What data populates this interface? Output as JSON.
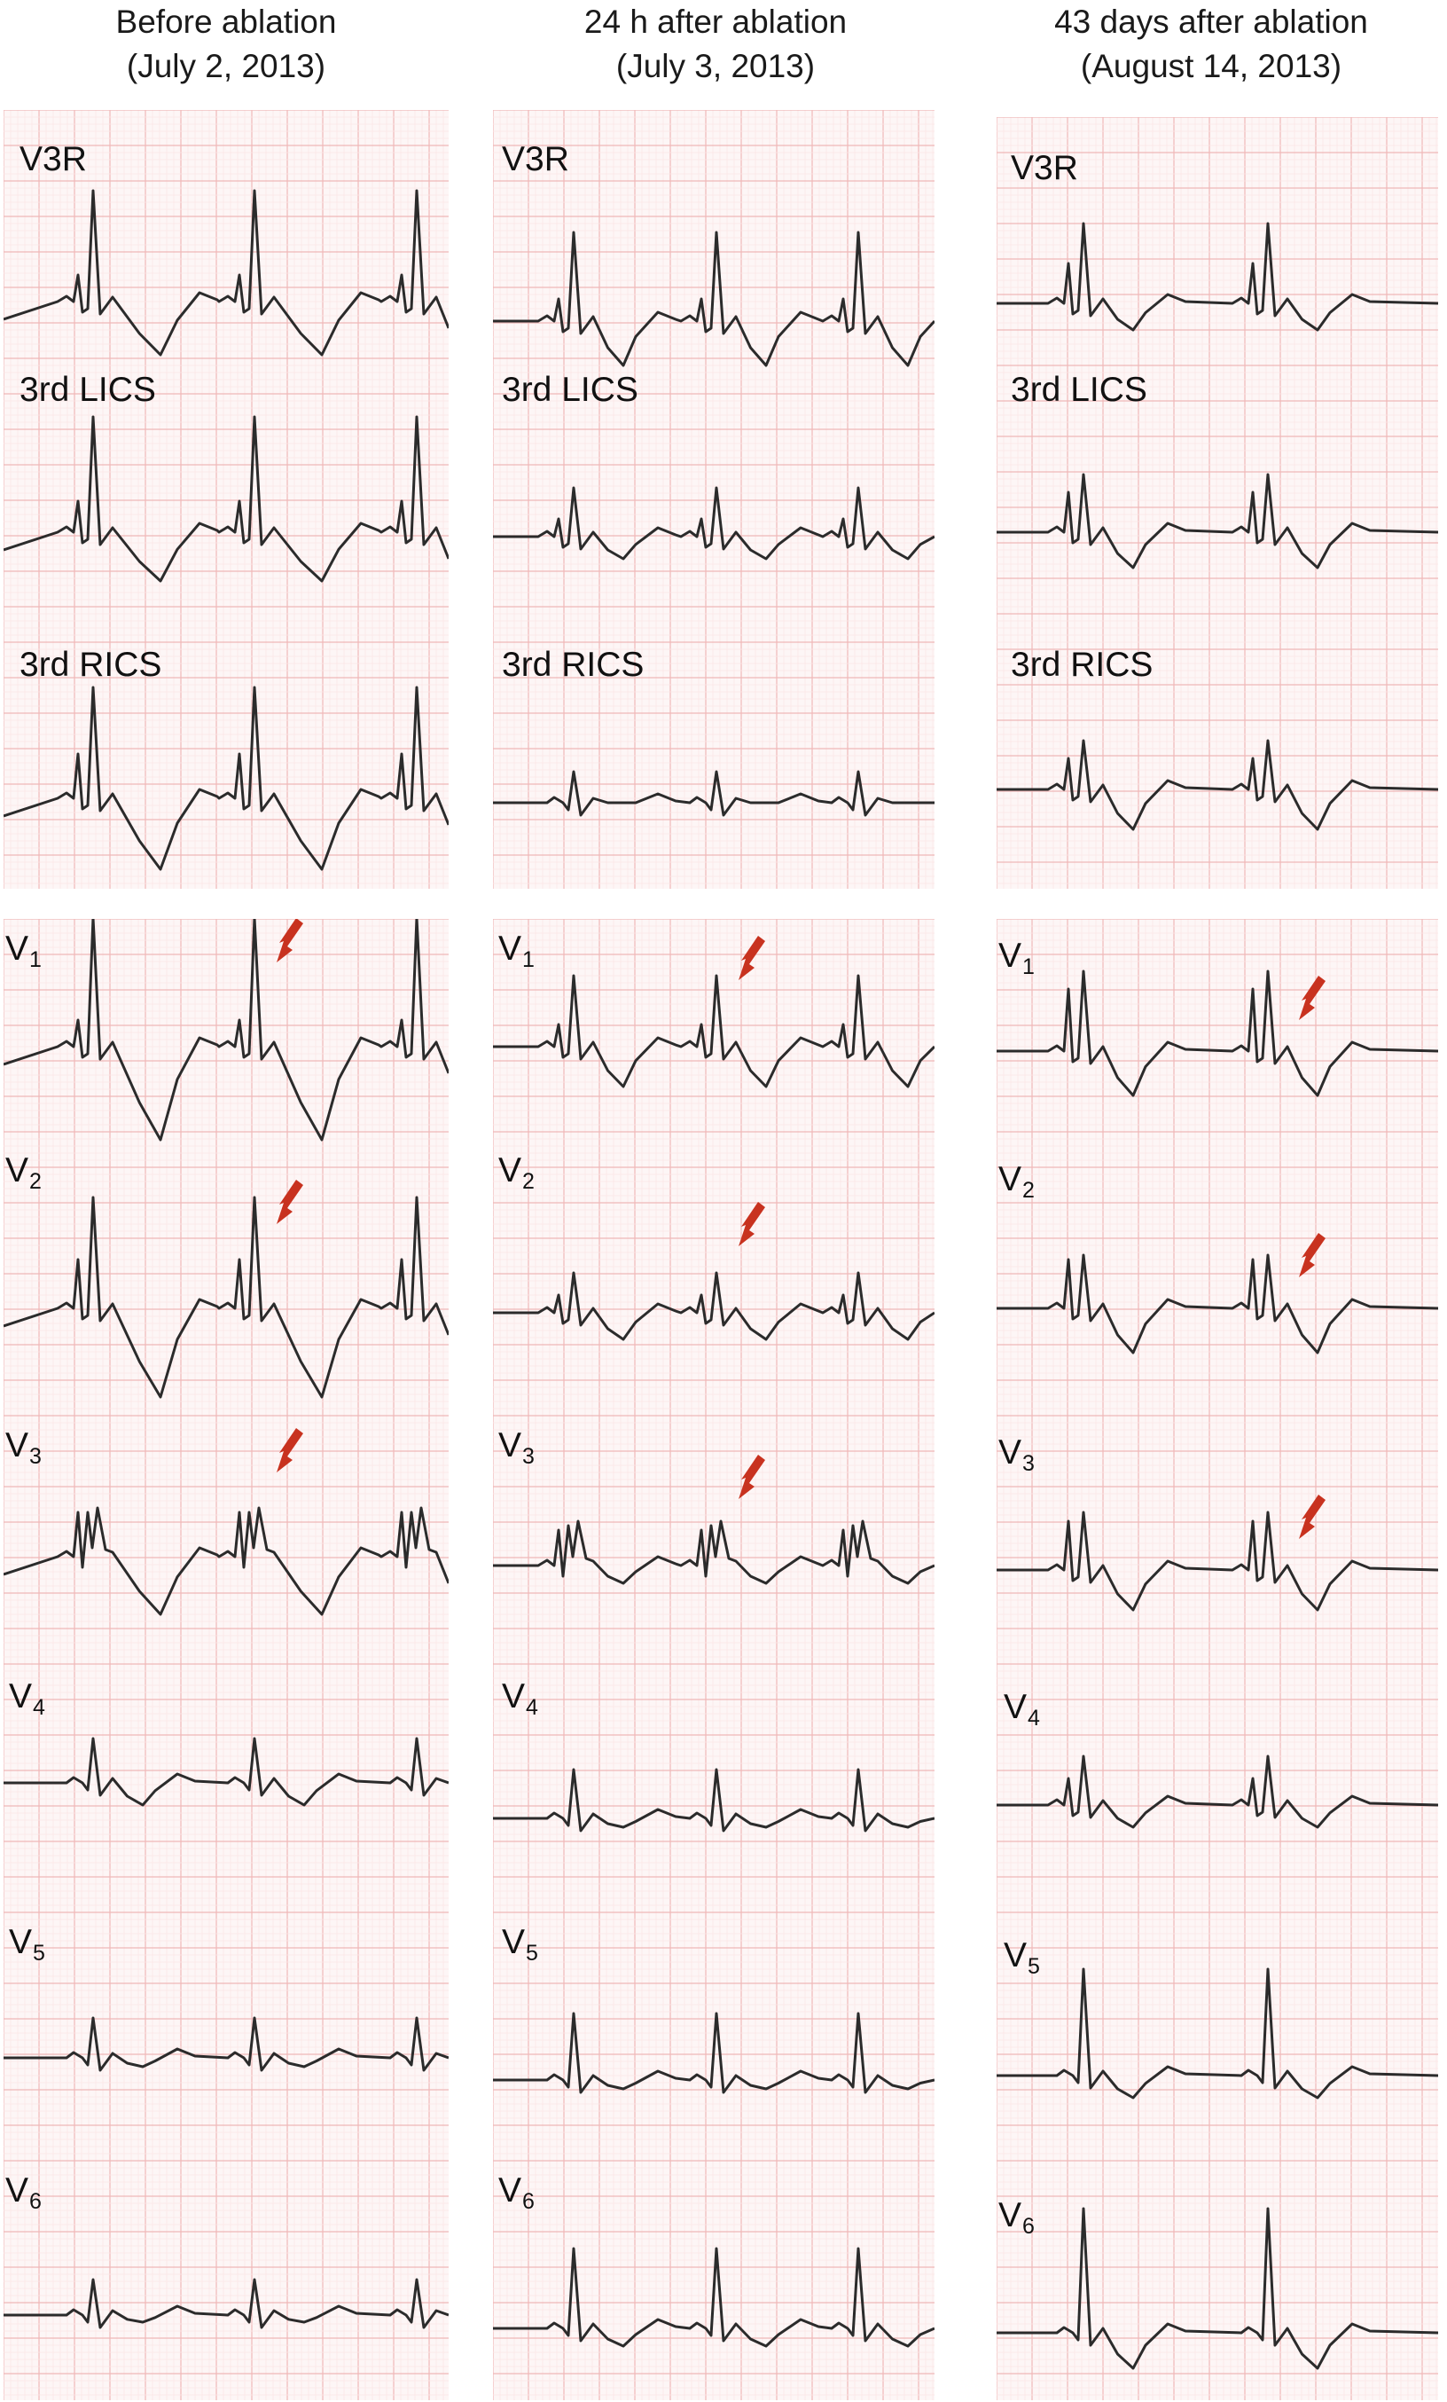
{
  "colors": {
    "grid_major": "#f0b8b8",
    "grid_minor": "#fbe6e6",
    "grid_bg": "#fdf6f6",
    "trace": "#2b2b2b",
    "arrow": "#c8321f"
  },
  "columns": [
    {
      "title_line1": "Before ablation",
      "title_line2": "(July 2, 2013)",
      "leads": [
        {
          "label": "V3R",
          "sub": ""
        },
        {
          "label": "3rd LICS",
          "sub": ""
        },
        {
          "label": "3rd RICS",
          "sub": ""
        },
        {
          "label": "V",
          "sub": "1"
        },
        {
          "label": "V",
          "sub": "2"
        },
        {
          "label": "V",
          "sub": "3"
        },
        {
          "label": "V",
          "sub": "4"
        },
        {
          "label": "V",
          "sub": "5"
        },
        {
          "label": "V",
          "sub": "6"
        }
      ]
    },
    {
      "title_line1": "24 h after ablation",
      "title_line2": "(July 3, 2013)",
      "leads": [
        {
          "label": "V3R",
          "sub": ""
        },
        {
          "label": "3rd LICS",
          "sub": ""
        },
        {
          "label": "3rd RICS",
          "sub": ""
        },
        {
          "label": "V",
          "sub": "1"
        },
        {
          "label": "V",
          "sub": "2"
        },
        {
          "label": "V",
          "sub": "3"
        },
        {
          "label": "V",
          "sub": "4"
        },
        {
          "label": "V",
          "sub": "5"
        },
        {
          "label": "V",
          "sub": "6"
        }
      ]
    },
    {
      "title_line1": "43 days after ablation",
      "title_line2": "(August 14, 2013)",
      "leads": [
        {
          "label": "V3R",
          "sub": ""
        },
        {
          "label": "3rd LICS",
          "sub": ""
        },
        {
          "label": "3rd RICS",
          "sub": ""
        },
        {
          "label": "V",
          "sub": "1"
        },
        {
          "label": "V",
          "sub": "2"
        },
        {
          "label": "V",
          "sub": "3"
        },
        {
          "label": "V",
          "sub": "4"
        },
        {
          "label": "V",
          "sub": "5"
        },
        {
          "label": "V",
          "sub": "6"
        }
      ]
    }
  ],
  "arrows_on_leads": [
    "V1",
    "V2",
    "V3"
  ]
}
